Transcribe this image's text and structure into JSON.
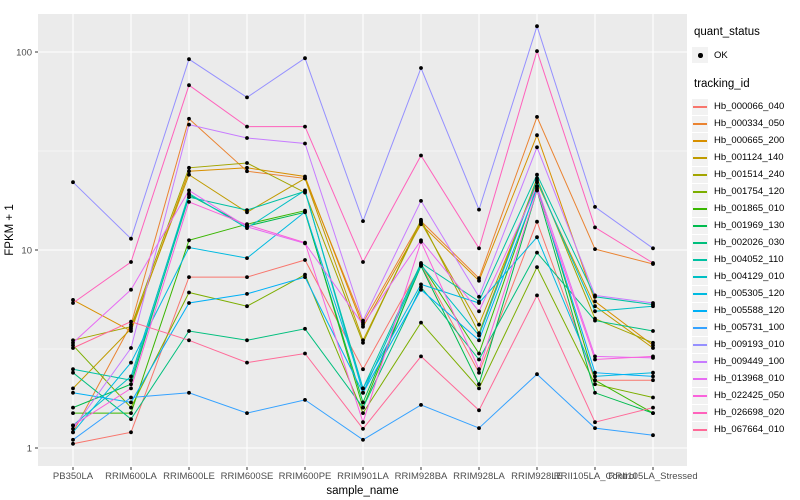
{
  "figure": {
    "background": "#FFFFFF",
    "panel_background": "#EBEBEB",
    "gridline_color": "#FFFFFF",
    "tick_label_color": "#4D4D4D",
    "point_color": "#000000"
  },
  "axes": {
    "x_title": "sample_name",
    "y_title": "FPKM + 1",
    "y_tick_labels": [
      "1",
      "10",
      "100"
    ]
  },
  "legend": {
    "quant_status_title": "quant_status",
    "ok_label": "OK",
    "tracking_id_title": "tracking_id"
  },
  "chart_data": {
    "type": "line",
    "title": "",
    "xlabel": "sample_name",
    "ylabel": "FPKM + 1",
    "y_scale": "log10",
    "y_major_ticks": [
      1,
      10,
      100
    ],
    "y_minor_gridlines": [
      3.162,
      31.62
    ],
    "ylim": [
      0.81,
      156
    ],
    "grid": true,
    "legend_position": "right",
    "point_marker": "black dot (quant_status OK)",
    "categories": [
      "PB350LA",
      "RRIM600LA",
      "RRIM600LE",
      "RRIM600SE",
      "RRIM600PE",
      "RRIM901LA",
      "RRIM928BA",
      "RRIM928LA",
      "RRIM928LE",
      "RRII105LA_Control",
      "RRII105LA_Stressed"
    ],
    "series": [
      {
        "name": "Hb_000066_040",
        "color": "#F8766D",
        "values": [
          1.05,
          1.2,
          7.3,
          7.3,
          8.9,
          2.5,
          8.4,
          2.4,
          13.9,
          2.2,
          2.2
        ]
      },
      {
        "name": "Hb_000334_050",
        "color": "#EA8331",
        "values": [
          1.2,
          4.2,
          46,
          25,
          23,
          4.3,
          14,
          7.2,
          47,
          10.1,
          8.5
        ]
      },
      {
        "name": "Hb_000665_200",
        "color": "#D89000",
        "values": [
          5.6,
          3.9,
          25,
          26,
          23.5,
          4.1,
          13.5,
          7.0,
          38,
          5.5,
          3.3
        ]
      },
      {
        "name": "Hb_001124_140",
        "color": "#C09B00",
        "values": [
          2.0,
          4.0,
          24,
          15.5,
          23,
          3.5,
          13.8,
          4.2,
          22,
          5.2,
          3.2
        ]
      },
      {
        "name": "Hb_001514_240",
        "color": "#A3A500",
        "values": [
          3.5,
          4.1,
          26,
          27.5,
          19.5,
          3.4,
          14.2,
          3.8,
          23,
          4.5,
          3.4
        ]
      },
      {
        "name": "Hb_001754_120",
        "color": "#7CAE00",
        "values": [
          3.3,
          1.6,
          6.1,
          5.2,
          7.5,
          1.5,
          4.3,
          2.0,
          8.2,
          2.1,
          1.8
        ]
      },
      {
        "name": "Hb_001865_010",
        "color": "#39B600",
        "values": [
          1.5,
          1.5,
          11.2,
          13.5,
          15.8,
          1.6,
          8.5,
          3.0,
          21,
          2.2,
          1.5
        ]
      },
      {
        "name": "Hb_001969_130",
        "color": "#00BB4E",
        "values": [
          1.6,
          2.1,
          19,
          13.2,
          15.5,
          1.7,
          8.3,
          2.1,
          20,
          1.9,
          1.5
        ]
      },
      {
        "name": "Hb_002026_030",
        "color": "#00BF7D",
        "values": [
          2.4,
          1.4,
          3.9,
          3.5,
          4.0,
          1.6,
          6.5,
          2.8,
          9.7,
          4.4,
          3.9
        ]
      },
      {
        "name": "Hb_004052_110",
        "color": "#00C1A3",
        "values": [
          2.5,
          2.2,
          18.5,
          15.9,
          19.8,
          2.0,
          8.6,
          5.5,
          24,
          5.8,
          5.3
        ]
      },
      {
        "name": "Hb_004129_010",
        "color": "#00BFC4",
        "values": [
          1.3,
          2.3,
          19.3,
          12.9,
          20,
          1.9,
          8.4,
          3.7,
          22.5,
          4.9,
          5.2
        ]
      },
      {
        "name": "Hb_005305_120",
        "color": "#00BAE0",
        "values": [
          1.2,
          2.7,
          10.3,
          9.1,
          15.6,
          2.0,
          6.7,
          5.4,
          11.6,
          2.3,
          2.4
        ]
      },
      {
        "name": "Hb_005588_120",
        "color": "#00B0F6",
        "values": [
          1.9,
          1.7,
          5.4,
          6.0,
          7.3,
          1.9,
          6.3,
          3.5,
          20.5,
          2.4,
          2.3
        ]
      },
      {
        "name": "Hb_005731_100",
        "color": "#35A2FF",
        "values": [
          1.1,
          1.8,
          1.9,
          1.5,
          1.75,
          1.1,
          1.65,
          1.26,
          2.36,
          1.26,
          1.16
        ]
      },
      {
        "name": "Hb_009193_010",
        "color": "#9590FF",
        "values": [
          22,
          11.4,
          92,
          59,
          93,
          14,
          83,
          16,
          135,
          16.5,
          10.2
        ]
      },
      {
        "name": "Hb_009449_100",
        "color": "#C77CFF",
        "values": [
          1.25,
          3.2,
          43,
          36.8,
          34.5,
          4.4,
          17.7,
          5.8,
          33,
          5.9,
          5.4
        ]
      },
      {
        "name": "Hb_013968_010",
        "color": "#E76BF3",
        "values": [
          3.4,
          6.3,
          20,
          13.1,
          10.8,
          4.2,
          11.2,
          4.9,
          21,
          2.9,
          2.85
        ]
      },
      {
        "name": "Hb_022425_050",
        "color": "#FA62DB",
        "values": [
          1.3,
          2.0,
          17.5,
          13.4,
          10.9,
          1.35,
          11.0,
          2.5,
          20,
          2.8,
          2.9
        ]
      },
      {
        "name": "Hb_026698_020",
        "color": "#FF62BC",
        "values": [
          5.4,
          8.7,
          68,
          42,
          42,
          8.7,
          30,
          10.2,
          101,
          13,
          8.6
        ]
      },
      {
        "name": "Hb_067664_010",
        "color": "#FF6A98",
        "values": [
          3.2,
          4.35,
          3.5,
          2.7,
          3.0,
          1.25,
          2.9,
          1.55,
          5.9,
          1.35,
          1.6
        ]
      }
    ]
  }
}
